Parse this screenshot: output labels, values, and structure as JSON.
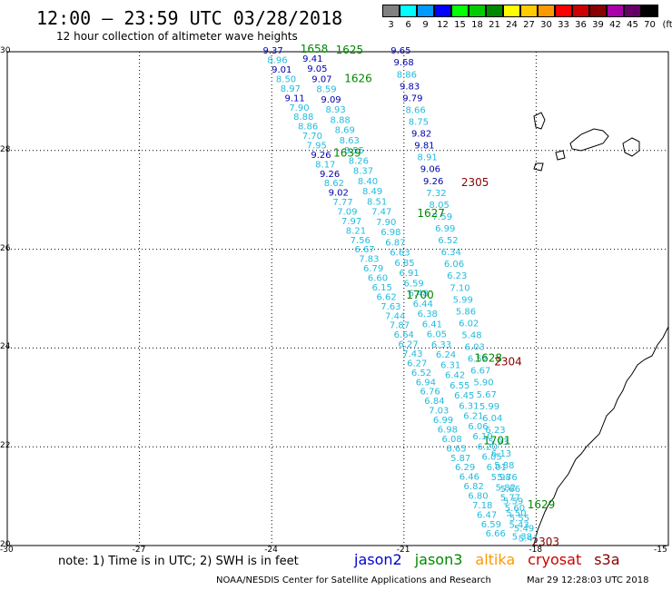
{
  "title": "12:00 – 23:59 UTC 03/28/2018",
  "subtitle": "12 hour collection of altimeter wave heights",
  "scale": {
    "unit_label": "(ft)",
    "swatches": [
      {
        "label": "3",
        "color": "#808080"
      },
      {
        "label": "6",
        "color": "#00ffff"
      },
      {
        "label": "9",
        "color": "#0099ff"
      },
      {
        "label": "12",
        "color": "#0000ff"
      },
      {
        "label": "15",
        "color": "#00ff00"
      },
      {
        "label": "18",
        "color": "#00cc00"
      },
      {
        "label": "21",
        "color": "#008800"
      },
      {
        "label": "24",
        "color": "#ffff00"
      },
      {
        "label": "27",
        "color": "#ffcc00"
      },
      {
        "label": "30",
        "color": "#ff9900"
      },
      {
        "label": "33",
        "color": "#ff0000"
      },
      {
        "label": "36",
        "color": "#cc0000"
      },
      {
        "label": "39",
        "color": "#880000"
      },
      {
        "label": "42",
        "color": "#aa00aa"
      },
      {
        "label": "45",
        "color": "#660066"
      },
      {
        "label": "70",
        "color": "#000000"
      }
    ]
  },
  "axes": {
    "lat_ticks": [
      "30",
      "28",
      "26",
      "24",
      "22",
      "20"
    ],
    "lon_ticks": [
      "-30",
      "-27",
      "-24",
      "-21",
      "-18",
      "-15"
    ],
    "lat_range": [
      20,
      30
    ],
    "lon_range": [
      -30,
      -15
    ]
  },
  "note": "note: 1) Time is in UTC; 2) SWH is in feet",
  "satellites": [
    {
      "name": "jason2",
      "color": "#0000cc"
    },
    {
      "name": "jason3",
      "color": "#008800"
    },
    {
      "name": "altika",
      "color": "#ff9900"
    },
    {
      "name": "cryosat",
      "color": "#cc0000"
    },
    {
      "name": "s3a",
      "color": "#880000"
    }
  ],
  "footer_left": "NOAA/NESDIS Center for Satellite Applications and Research",
  "footer_right": "Mar 29 12:28:03 UTC 2018",
  "colors": {
    "light": "#22bbdd",
    "dark": "#0000aa",
    "green": "#008800",
    "maroon": "#880000"
  },
  "track_a": {
    "values": [
      "9.37",
      "8.96",
      "9.01",
      "8.50",
      "8.97",
      "9.11",
      "7.90",
      "8.88",
      "8.86",
      "7.70",
      "7.95",
      "9.26",
      "8.17",
      "9.26",
      "8.62",
      "9.02",
      "7.77",
      "7.09",
      "7.97",
      "8.21",
      "7.56",
      "6.67",
      "7.83",
      "6.79",
      "6.60",
      "6.15",
      "6.62",
      "7.63",
      "7.44",
      "7.87",
      "6.64",
      "6.27",
      "7.43",
      "6.27",
      "6.52",
      "6.94",
      "6.76",
      "6.84",
      "7.03",
      "6.99",
      "6.98",
      "6.08",
      "6.65",
      "5.87",
      "6.29",
      "6.46",
      "6.82",
      "6.80",
      "7.18",
      "6.47",
      "6.59",
      "6.66"
    ],
    "dark_idx": [
      0,
      2,
      5,
      11,
      13,
      15
    ]
  },
  "track_b": {
    "values": [
      "9.41",
      "9.05",
      "9.07",
      "8.59",
      "9.09",
      "8.93",
      "8.88",
      "8.69",
      "8.63",
      "8.55",
      "8.26",
      "8.37",
      "8.40",
      "8.49",
      "8.51",
      "7.47",
      "7.90",
      "6.98",
      "6.87",
      "6.63",
      "6.85",
      "6.91",
      "6.59",
      "6.48",
      "6.44",
      "6.38",
      "6.41",
      "6.05",
      "6.33",
      "6.24",
      "6.31",
      "6.42",
      "6.55",
      "6.45",
      "6.31",
      "6.21",
      "6.06",
      "6.10",
      "6.20",
      "6.05",
      "6.01",
      "5.98",
      "5.82",
      "5.77",
      "5.60",
      "5.55",
      "5.49",
      "5.41"
    ],
    "dark_idx": [
      0,
      1,
      2,
      4
    ]
  },
  "track_c": {
    "values": [
      "9.65",
      "9.68",
      "8.86",
      "9.83",
      "9.79",
      "8.66",
      "8.75",
      "9.82",
      "9.81",
      "8.91",
      "9.06",
      "9.26",
      "7.32",
      "8.05",
      "7.59",
      "6.99",
      "6.52",
      "6.34",
      "6.06",
      "6.23",
      "7.10",
      "5.99",
      "5.86",
      "6.02",
      "5.48",
      "6.03",
      "6.52",
      "6.67",
      "5.90",
      "5.67",
      "5.99",
      "6.04",
      "6.23",
      "5.93",
      "6.13",
      "5.88",
      "5.76",
      "5.66",
      "5.59",
      "5.50",
      "5.43",
      "5.38"
    ],
    "dark_idx": [
      0,
      1,
      3,
      4,
      7,
      8,
      10,
      11
    ]
  },
  "time_labels": [
    {
      "text": "1658",
      "lat": 29.98,
      "lon": -23.35,
      "color": "green"
    },
    {
      "text": "1625",
      "lat": 29.96,
      "lon": -22.55,
      "color": "green"
    },
    {
      "text": "1626",
      "lat": 29.38,
      "lon": -22.35,
      "color": "green"
    },
    {
      "text": "1639",
      "lat": 27.88,
      "lon": -22.6,
      "color": "green"
    },
    {
      "text": "2305",
      "lat": 27.28,
      "lon": -19.7,
      "color": "maroon"
    },
    {
      "text": "1627",
      "lat": 26.65,
      "lon": -20.7,
      "color": "green"
    },
    {
      "text": "1700",
      "lat": 25.0,
      "lon": -20.95,
      "color": "green"
    },
    {
      "text": "1628",
      "lat": 23.72,
      "lon": -19.4,
      "color": "green"
    },
    {
      "text": "2304",
      "lat": 23.65,
      "lon": -18.95,
      "color": "maroon"
    },
    {
      "text": "1701",
      "lat": 22.05,
      "lon": -19.2,
      "color": "green"
    },
    {
      "text": "1629",
      "lat": 20.75,
      "lon": -18.2,
      "color": "green"
    },
    {
      "text": "2303",
      "lat": 20.0,
      "lon": -18.1,
      "color": "maroon"
    }
  ]
}
